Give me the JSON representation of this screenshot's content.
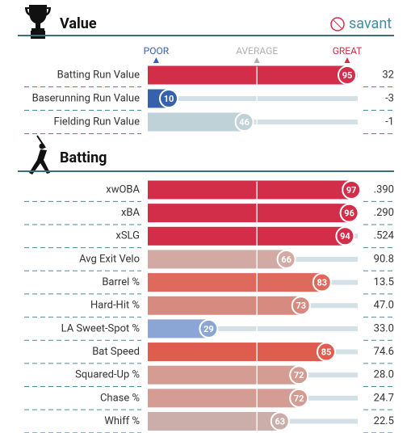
{
  "logo": "savant",
  "chart_data": [
    {
      "type": "percentile",
      "title": "Value",
      "categories": [
        "Batting Run Value",
        "Baserunning Run Value",
        "Fielding Run Value"
      ],
      "values": [
        95,
        10,
        46
      ],
      "stats": [
        "32",
        "-3",
        "-1"
      ],
      "colors": [
        "#d22d49",
        "#3661ad",
        "#bfd2d8"
      ],
      "xlim": [
        0,
        100
      ],
      "xticks": [
        {
          "value": 4,
          "label": "POOR"
        },
        {
          "value": 52,
          "label": "AVERAGE"
        },
        {
          "value": 95,
          "label": "GREAT"
        }
      ]
    },
    {
      "type": "percentile",
      "title": "Batting",
      "categories": [
        "xwOBA",
        "xBA",
        "xSLG",
        "Avg Exit Velo",
        "Barrel %",
        "Hard-Hit %",
        "LA Sweet-Spot %",
        "Bat Speed",
        "Squared-Up %",
        "Chase %",
        "Whiff %"
      ],
      "values": [
        97,
        96,
        94,
        66,
        83,
        73,
        29,
        85,
        72,
        72,
        63
      ],
      "stats": [
        ".390",
        ".290",
        ".524",
        "90.8",
        "13.5",
        "47.0",
        "33.0",
        "74.6",
        "28.0",
        "24.7",
        "22.5"
      ],
      "colors": [
        "#d22d49",
        "#d22d49",
        "#d22d49",
        "#d3aaa3",
        "#dd6a5c",
        "#d78b80",
        "#8ba6d4",
        "#df5d4f",
        "#d59c93",
        "#d59c93",
        "#cbaeaa"
      ],
      "xlim": [
        0,
        100
      ]
    }
  ]
}
